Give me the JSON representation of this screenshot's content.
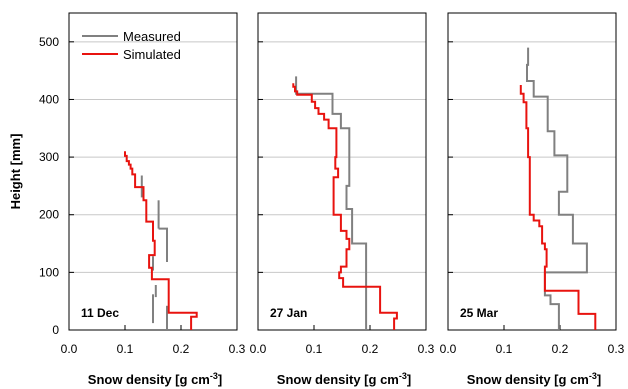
{
  "chart_data": {
    "type": "line",
    "ylabel": "Height [mm]",
    "ylim": [
      0,
      550
    ],
    "yticks": [
      "0",
      "100",
      "200",
      "300",
      "400",
      "500"
    ],
    "xlim": [
      0.0,
      0.3
    ],
    "xticks": [
      "0.0",
      "0.1",
      "0.2",
      "0.3"
    ],
    "xlabel_main": "Snow density [g cm",
    "xlabel_sup": "-3",
    "xlabel_tail": "]",
    "grid": "horizontal",
    "legend": {
      "position": "top-left of first panel",
      "entries": [
        {
          "label": "Measured",
          "color": "#808080"
        },
        {
          "label": "Simulated",
          "color": "#e8130f"
        }
      ]
    },
    "panels": [
      {
        "label": "11 Dec",
        "series": [
          {
            "name": "Measured",
            "color": "#808080",
            "segments": [
              [
                [
                  0.13,
                  230
                ],
                [
                  0.13,
                  268
                ]
              ],
              [
                [
                  0.16,
                  176
                ],
                [
                  0.16,
                  225
                ]
              ],
              [
                [
                  0.16,
                  176
                ],
                [
                  0.175,
                  176
                ],
                [
                  0.175,
                  118
                ]
              ],
              [
                [
                  0.15,
                  103
                ],
                [
                  0.15,
                  128
                ]
              ],
              [
                [
                  0.155,
                  57
                ],
                [
                  0.155,
                  78
                ]
              ],
              [
                [
                  0.15,
                  12
                ],
                [
                  0.15,
                  62
                ]
              ],
              [
                [
                  0.175,
                  0
                ],
                [
                  0.175,
                  42
                ]
              ]
            ]
          },
          {
            "name": "Simulated",
            "color": "#e8130f",
            "points": [
              [
                0.1,
                310
              ],
              [
                0.1,
                302
              ],
              [
                0.103,
                302
              ],
              [
                0.103,
                293
              ],
              [
                0.107,
                293
              ],
              [
                0.107,
                287
              ],
              [
                0.11,
                287
              ],
              [
                0.11,
                280
              ],
              [
                0.113,
                280
              ],
              [
                0.113,
                270
              ],
              [
                0.118,
                270
              ],
              [
                0.118,
                248
              ],
              [
                0.133,
                248
              ],
              [
                0.133,
                225
              ],
              [
                0.138,
                225
              ],
              [
                0.138,
                188
              ],
              [
                0.15,
                188
              ],
              [
                0.15,
                155
              ],
              [
                0.153,
                155
              ],
              [
                0.153,
                130
              ],
              [
                0.143,
                130
              ],
              [
                0.143,
                108
              ],
              [
                0.148,
                108
              ],
              [
                0.148,
                88
              ],
              [
                0.178,
                88
              ],
              [
                0.178,
                30
              ],
              [
                0.228,
                30
              ],
              [
                0.228,
                23
              ],
              [
                0.218,
                23
              ],
              [
                0.218,
                0
              ]
            ]
          }
        ]
      },
      {
        "label": "27 Jan",
        "series": [
          {
            "name": "Measured",
            "color": "#808080",
            "points": [
              [
                0.068,
                440
              ],
              [
                0.068,
                410
              ],
              [
                0.133,
                410
              ],
              [
                0.133,
                375
              ],
              [
                0.148,
                375
              ],
              [
                0.148,
                350
              ],
              [
                0.163,
                350
              ],
              [
                0.163,
                250
              ],
              [
                0.158,
                250
              ],
              [
                0.158,
                210
              ],
              [
                0.168,
                210
              ],
              [
                0.168,
                150
              ],
              [
                0.193,
                150
              ],
              [
                0.193,
                0
              ]
            ]
          },
          {
            "name": "Simulated",
            "color": "#e8130f",
            "points": [
              [
                0.063,
                428
              ],
              [
                0.063,
                422
              ],
              [
                0.066,
                422
              ],
              [
                0.066,
                414
              ],
              [
                0.07,
                414
              ],
              [
                0.07,
                408
              ],
              [
                0.096,
                408
              ],
              [
                0.096,
                396
              ],
              [
                0.102,
                396
              ],
              [
                0.102,
                385
              ],
              [
                0.108,
                385
              ],
              [
                0.108,
                375
              ],
              [
                0.118,
                375
              ],
              [
                0.118,
                365
              ],
              [
                0.126,
                365
              ],
              [
                0.126,
                350
              ],
              [
                0.14,
                350
              ],
              [
                0.14,
                300
              ],
              [
                0.138,
                300
              ],
              [
                0.138,
                280
              ],
              [
                0.143,
                280
              ],
              [
                0.143,
                265
              ],
              [
                0.135,
                265
              ],
              [
                0.135,
                200
              ],
              [
                0.148,
                200
              ],
              [
                0.148,
                172
              ],
              [
                0.158,
                172
              ],
              [
                0.158,
                158
              ],
              [
                0.163,
                158
              ],
              [
                0.163,
                140
              ],
              [
                0.158,
                140
              ],
              [
                0.158,
                110
              ],
              [
                0.148,
                110
              ],
              [
                0.148,
                100
              ],
              [
                0.145,
                100
              ],
              [
                0.145,
                90
              ],
              [
                0.152,
                90
              ],
              [
                0.152,
                75
              ],
              [
                0.218,
                75
              ],
              [
                0.218,
                30
              ],
              [
                0.248,
                30
              ],
              [
                0.248,
                20
              ],
              [
                0.243,
                20
              ],
              [
                0.243,
                0
              ]
            ]
          }
        ]
      },
      {
        "label": "25 Mar",
        "series": [
          {
            "name": "Measured",
            "color": "#808080",
            "points": [
              [
                0.143,
                490
              ],
              [
                0.143,
                460
              ],
              [
                0.141,
                460
              ],
              [
                0.141,
                432
              ],
              [
                0.153,
                432
              ],
              [
                0.153,
                405
              ],
              [
                0.178,
                405
              ],
              [
                0.178,
                345
              ],
              [
                0.19,
                345
              ],
              [
                0.19,
                303
              ],
              [
                0.213,
                303
              ],
              [
                0.213,
                240
              ],
              [
                0.198,
                240
              ],
              [
                0.198,
                200
              ],
              [
                0.223,
                200
              ],
              [
                0.223,
                150
              ],
              [
                0.248,
                150
              ],
              [
                0.248,
                100
              ],
              [
                0.173,
                100
              ],
              [
                0.173,
                60
              ],
              [
                0.183,
                60
              ],
              [
                0.183,
                45
              ],
              [
                0.198,
                45
              ],
              [
                0.198,
                0
              ]
            ]
          },
          {
            "name": "Simulated",
            "color": "#e8130f",
            "points": [
              [
                0.13,
                425
              ],
              [
                0.13,
                410
              ],
              [
                0.135,
                410
              ],
              [
                0.135,
                395
              ],
              [
                0.14,
                395
              ],
              [
                0.14,
                350
              ],
              [
                0.143,
                350
              ],
              [
                0.143,
                300
              ],
              [
                0.146,
                300
              ],
              [
                0.146,
                200
              ],
              [
                0.153,
                200
              ],
              [
                0.153,
                190
              ],
              [
                0.163,
                190
              ],
              [
                0.163,
                180
              ],
              [
                0.168,
                180
              ],
              [
                0.168,
                150
              ],
              [
                0.173,
                150
              ],
              [
                0.173,
                140
              ],
              [
                0.176,
                140
              ],
              [
                0.176,
                110
              ],
              [
                0.173,
                110
              ],
              [
                0.173,
                68
              ],
              [
                0.233,
                68
              ],
              [
                0.233,
                28
              ],
              [
                0.263,
                28
              ],
              [
                0.263,
                0
              ]
            ]
          }
        ]
      }
    ]
  }
}
